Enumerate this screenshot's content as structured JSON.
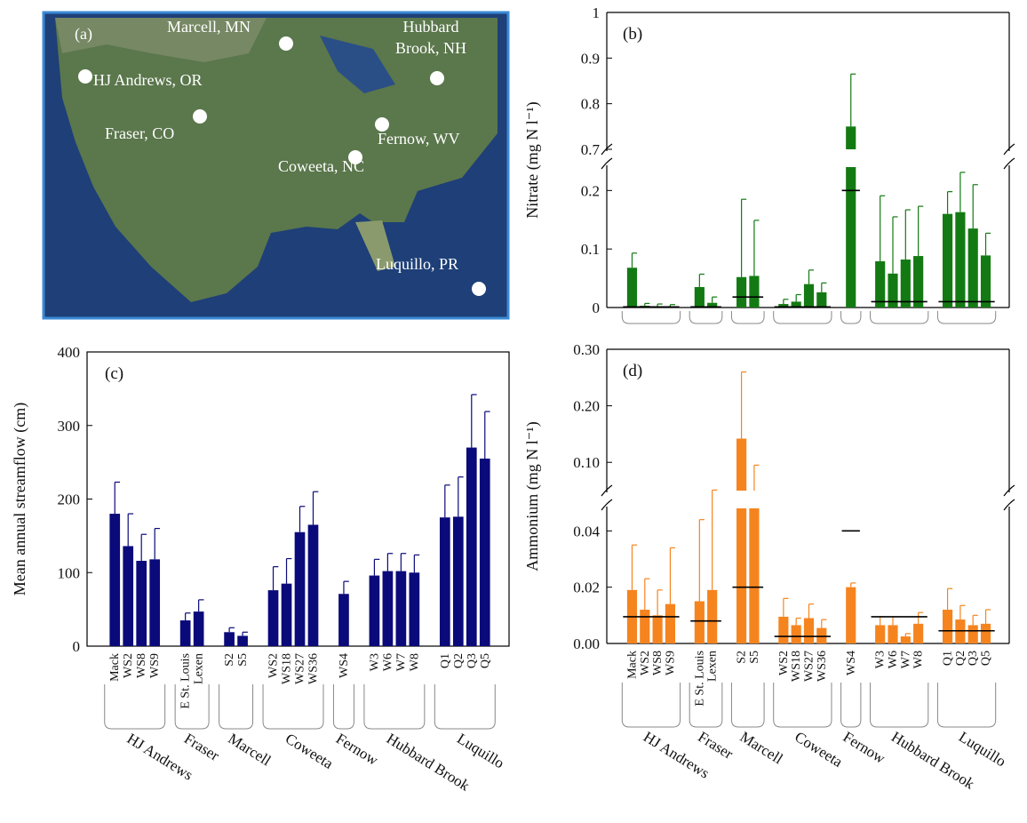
{
  "map": {
    "label": "(a)",
    "colors": {
      "ocean": "#1e3f78",
      "land": "#5f7a4a",
      "border": "#3a8ad6"
    },
    "sites": [
      {
        "name": "Marcell, MN"
      },
      {
        "name": "Hubbard\nBrook, NH"
      },
      {
        "name": "HJ Andrews, OR"
      },
      {
        "name": "Fraser, CO"
      },
      {
        "name": "Fernow, WV"
      },
      {
        "name": "Coweeta, NC"
      },
      {
        "name": "Luquillo, PR"
      }
    ]
  },
  "chart_data": [
    {
      "panel": "(c)",
      "type": "bar",
      "color": "#0a0a7a",
      "ylabel": "Mean annual streamflow (cm)",
      "ylim": [
        0,
        400
      ],
      "yticks": [
        0,
        100,
        200,
        300,
        400
      ],
      "groups": [
        {
          "site": "HJ Andrews",
          "categories": [
            "Mack",
            "WS2",
            "WS8",
            "WS9"
          ],
          "values": [
            180,
            136,
            116,
            118
          ],
          "errors": [
            43,
            44,
            36,
            42
          ]
        },
        {
          "site": "Fraser",
          "categories": [
            "E St. Louis",
            "Lexen"
          ],
          "values": [
            35,
            47
          ],
          "errors": [
            10,
            16
          ]
        },
        {
          "site": "Marcell",
          "categories": [
            "S2",
            "S5"
          ],
          "values": [
            19,
            14
          ],
          "errors": [
            6,
            5
          ]
        },
        {
          "site": "Coweeta",
          "categories": [
            "WS2",
            "WS18",
            "WS27",
            "WS36"
          ],
          "values": [
            76,
            85,
            155,
            165
          ],
          "errors": [
            32,
            34,
            35,
            45
          ]
        },
        {
          "site": "Fernow",
          "categories": [
            "WS4"
          ],
          "values": [
            71
          ],
          "errors": [
            17
          ]
        },
        {
          "site": "Hubbard Brook",
          "categories": [
            "W3",
            "W6",
            "W7",
            "W8"
          ],
          "values": [
            96,
            102,
            102,
            100
          ],
          "errors": [
            22,
            24,
            24,
            24
          ]
        },
        {
          "site": "Luquillo",
          "categories": [
            "Q1",
            "Q2",
            "Q3",
            "Q5"
          ],
          "values": [
            175,
            176,
            270,
            255
          ],
          "errors": [
            44,
            54,
            72,
            64
          ]
        }
      ]
    },
    {
      "panel": "(b)",
      "type": "bar",
      "color": "#137a13",
      "ylabel": "Nitrate (mg N l⁻¹)",
      "broken_axis": true,
      "lower_ticks": [
        0.0,
        0.1,
        0.2
      ],
      "upper_ticks": [
        0.7,
        0.8,
        0.9,
        1.0
      ],
      "groups": [
        {
          "site": "HJ Andrews",
          "values": [
            0.068,
            0.003,
            0.002,
            0.002
          ],
          "errors": [
            0.025,
            0.004,
            0.004,
            0.003
          ],
          "reference": 0.001
        },
        {
          "site": "Fraser",
          "values": [
            0.035,
            0.008
          ],
          "errors": [
            0.022,
            0.01
          ],
          "reference": 0.001
        },
        {
          "site": "Marcell",
          "values": [
            0.052,
            0.054
          ],
          "errors": [
            0.133,
            0.095
          ],
          "reference": 0.018
        },
        {
          "site": "Coweeta",
          "values": [
            0.006,
            0.01,
            0.04,
            0.026
          ],
          "errors": [
            0.008,
            0.012,
            0.024,
            0.016
          ],
          "reference": 0.001
        },
        {
          "site": "Fernow",
          "values": [
            0.75
          ],
          "errors": [
            0.115
          ],
          "reference": 0.2
        },
        {
          "site": "Hubbard Brook",
          "values": [
            0.079,
            0.058,
            0.082,
            0.088
          ],
          "errors": [
            0.112,
            0.097,
            0.085,
            0.085
          ],
          "reference": 0.01
        },
        {
          "site": "Luquillo",
          "values": [
            0.16,
            0.163,
            0.135,
            0.089
          ],
          "errors": [
            0.038,
            0.068,
            0.075,
            0.038
          ],
          "reference": 0.01
        }
      ]
    },
    {
      "panel": "(d)",
      "type": "bar",
      "color": "#f5841f",
      "ylabel": "Ammonium (mg N l⁻¹)",
      "broken_axis": true,
      "lower_ticks": [
        "0.00",
        "0.02",
        "0.04"
      ],
      "upper_ticks": [
        "0.10",
        "0.20",
        "0.30"
      ],
      "groups": [
        {
          "site": "HJ Andrews",
          "values": [
            0.019,
            0.012,
            0.01,
            0.014
          ],
          "errors": [
            0.016,
            0.011,
            0.009,
            0.02
          ],
          "reference": 0.0095
        },
        {
          "site": "Fraser",
          "values": [
            0.015,
            0.019
          ],
          "errors": [
            0.029,
            0.032
          ],
          "reference": 0.008
        },
        {
          "site": "Marcell",
          "values": [
            0.142,
            0.05
          ],
          "errors": [
            0.118,
            0.045
          ],
          "reference": 0.02
        },
        {
          "site": "Coweeta",
          "values": [
            0.0095,
            0.0065,
            0.009,
            0.0055
          ],
          "errors": [
            0.0065,
            0.0025,
            0.005,
            0.003
          ],
          "reference": 0.0025
        },
        {
          "site": "Fernow",
          "values": [
            0.02
          ],
          "errors": [
            0.0015
          ],
          "reference": 0.04
        },
        {
          "site": "Hubbard Brook",
          "values": [
            0.0065,
            0.0065,
            0.0025,
            0.007
          ],
          "errors": [
            0.003,
            0.003,
            0.001,
            0.004
          ],
          "reference": 0.0095
        },
        {
          "site": "Luquillo",
          "values": [
            0.012,
            0.0085,
            0.0065,
            0.007
          ],
          "errors": [
            0.0075,
            0.005,
            0.0035,
            0.005
          ],
          "reference": 0.0045
        }
      ]
    }
  ]
}
